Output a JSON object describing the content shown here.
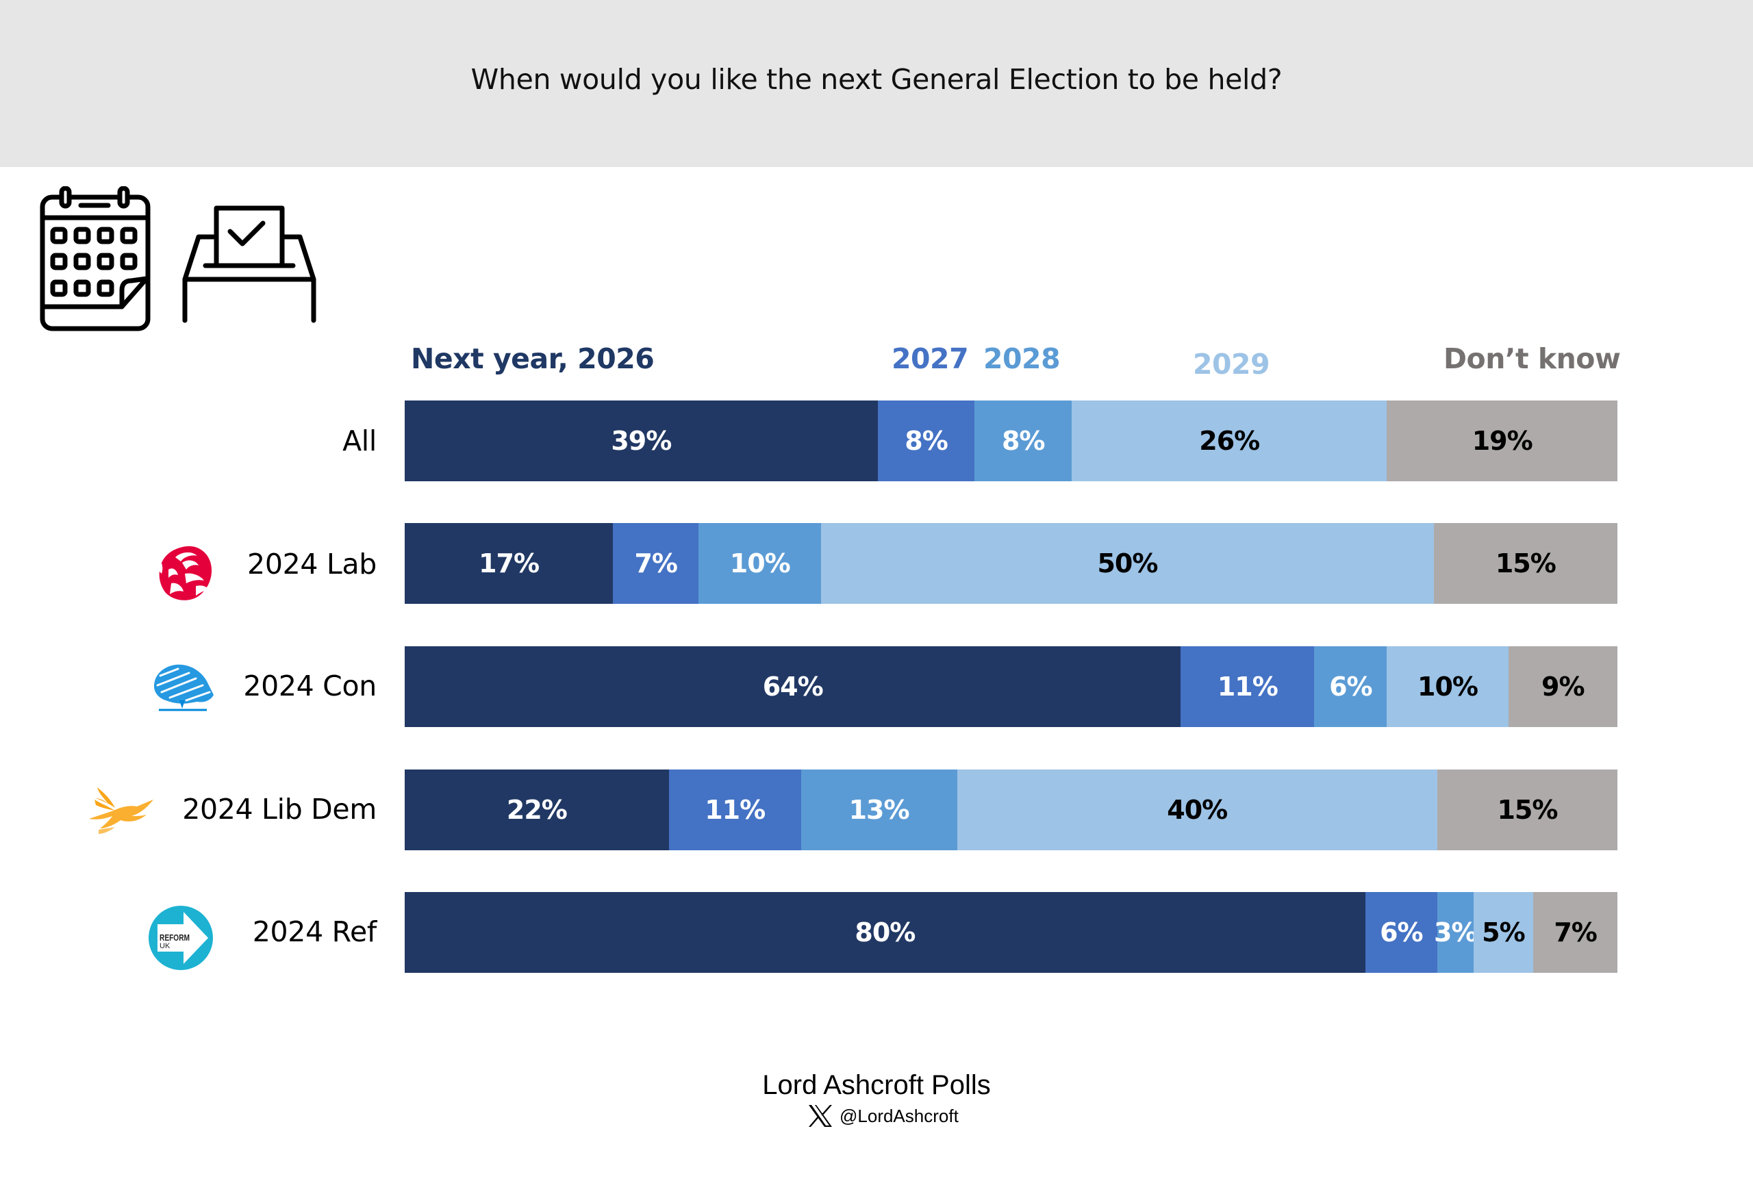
{
  "header": {
    "title": "When would you like the next General Election to be held?"
  },
  "icons": {
    "left": "calendar-icon",
    "right": "ballot-box-icon"
  },
  "footer": {
    "brand": "Lord Ashcroft Polls",
    "handle": "@LordAshcroft",
    "social_icon": "x-logo-icon"
  },
  "chart_data": {
    "type": "bar",
    "orientation": "horizontal",
    "stacked": true,
    "normalized": true,
    "title": "When would you like the next General Election to be held?",
    "xlabel": "",
    "ylabel": "",
    "legend_placement": "top",
    "grid": false,
    "categories": [
      "All",
      "2024 Lab",
      "2024 Con",
      "2024 Lib Dem",
      "2024 Ref"
    ],
    "category_logos": [
      "",
      "labour-rose-logo",
      "conservative-tree-logo",
      "libdem-bird-logo",
      "reform-uk-logo"
    ],
    "series": [
      {
        "name": "Next year, 2026",
        "color": "#213864",
        "label_color": "#FFFFFF",
        "legend_color": "#1F3864",
        "values": [
          39,
          17,
          64,
          22,
          80
        ]
      },
      {
        "name": "2027",
        "color": "#4472C4",
        "label_color": "#FFFFFF",
        "legend_color": "#4472C4",
        "values": [
          8,
          7,
          11,
          11,
          6
        ]
      },
      {
        "name": "2028",
        "color": "#5B9BD5",
        "label_color": "#FFFFFF",
        "legend_color": "#5B9BD5",
        "values": [
          8,
          10,
          6,
          13,
          3
        ]
      },
      {
        "name": "2029",
        "color": "#9DC3E6",
        "label_color": "#000000",
        "legend_color": "#9DC3E6",
        "values": [
          26,
          50,
          10,
          40,
          5
        ]
      },
      {
        "name": "Don’t know",
        "color": "#AEAAAA",
        "label_color": "#000000",
        "legend_color": "#767171",
        "values": [
          19,
          15,
          9,
          15,
          7
        ]
      }
    ],
    "value_suffix": "%"
  }
}
